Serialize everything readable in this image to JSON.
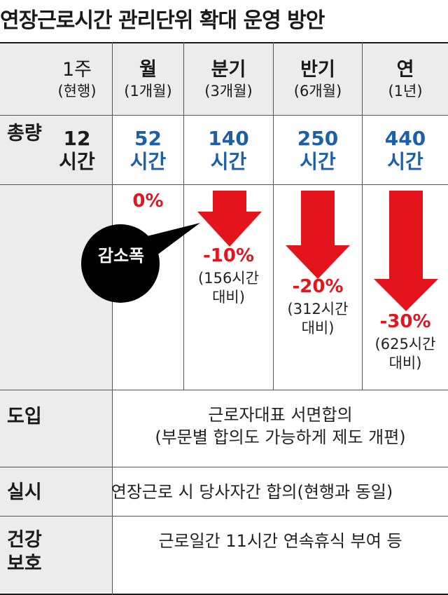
{
  "title": "연장근로시간 관리단위 확대 운영 방안",
  "columns": [
    {
      "name": "1주",
      "sub": "(현행)"
    },
    {
      "name": "월",
      "sub": "(1개월)"
    },
    {
      "name": "분기",
      "sub": "(3개월)"
    },
    {
      "name": "반기",
      "sub": "(6개월)"
    },
    {
      "name": "연",
      "sub": "(1년)"
    }
  ],
  "total_row": {
    "label": "총량",
    "values": [
      {
        "num": "12",
        "unit": "시간"
      },
      {
        "num": "52",
        "unit": "시간"
      },
      {
        "num": "140",
        "unit": "시간"
      },
      {
        "num": "250",
        "unit": "시간"
      },
      {
        "num": "440",
        "unit": "시간"
      }
    ]
  },
  "reduction": {
    "bubble_label": "감소폭",
    "items": [
      {
        "pct": "0%"
      },
      {
        "pct": "-10%",
        "basis_line1": "(156시간",
        "basis_line2": "대비)"
      },
      {
        "pct": "-20%",
        "basis_line1": "(312시간",
        "basis_line2": "대비)"
      },
      {
        "pct": "-30%",
        "basis_line1": "(625시간",
        "basis_line2": "대비)"
      }
    ]
  },
  "rows": [
    {
      "label": "도입",
      "line1": "근로자대표 서면합의",
      "line2": "(부문별 합의도 가능하게 제도 개편)"
    },
    {
      "label": "실시",
      "line1": "연장근로 시 당사자간 합의(현행과 동일)"
    },
    {
      "label_line1": "건강",
      "label_line2": "보호",
      "line1": "근로일간 11시간 연속휴식 부여 등"
    }
  ],
  "colors": {
    "blue": "#1f5fa8",
    "red": "#e3141b",
    "shade": "#ececec"
  }
}
